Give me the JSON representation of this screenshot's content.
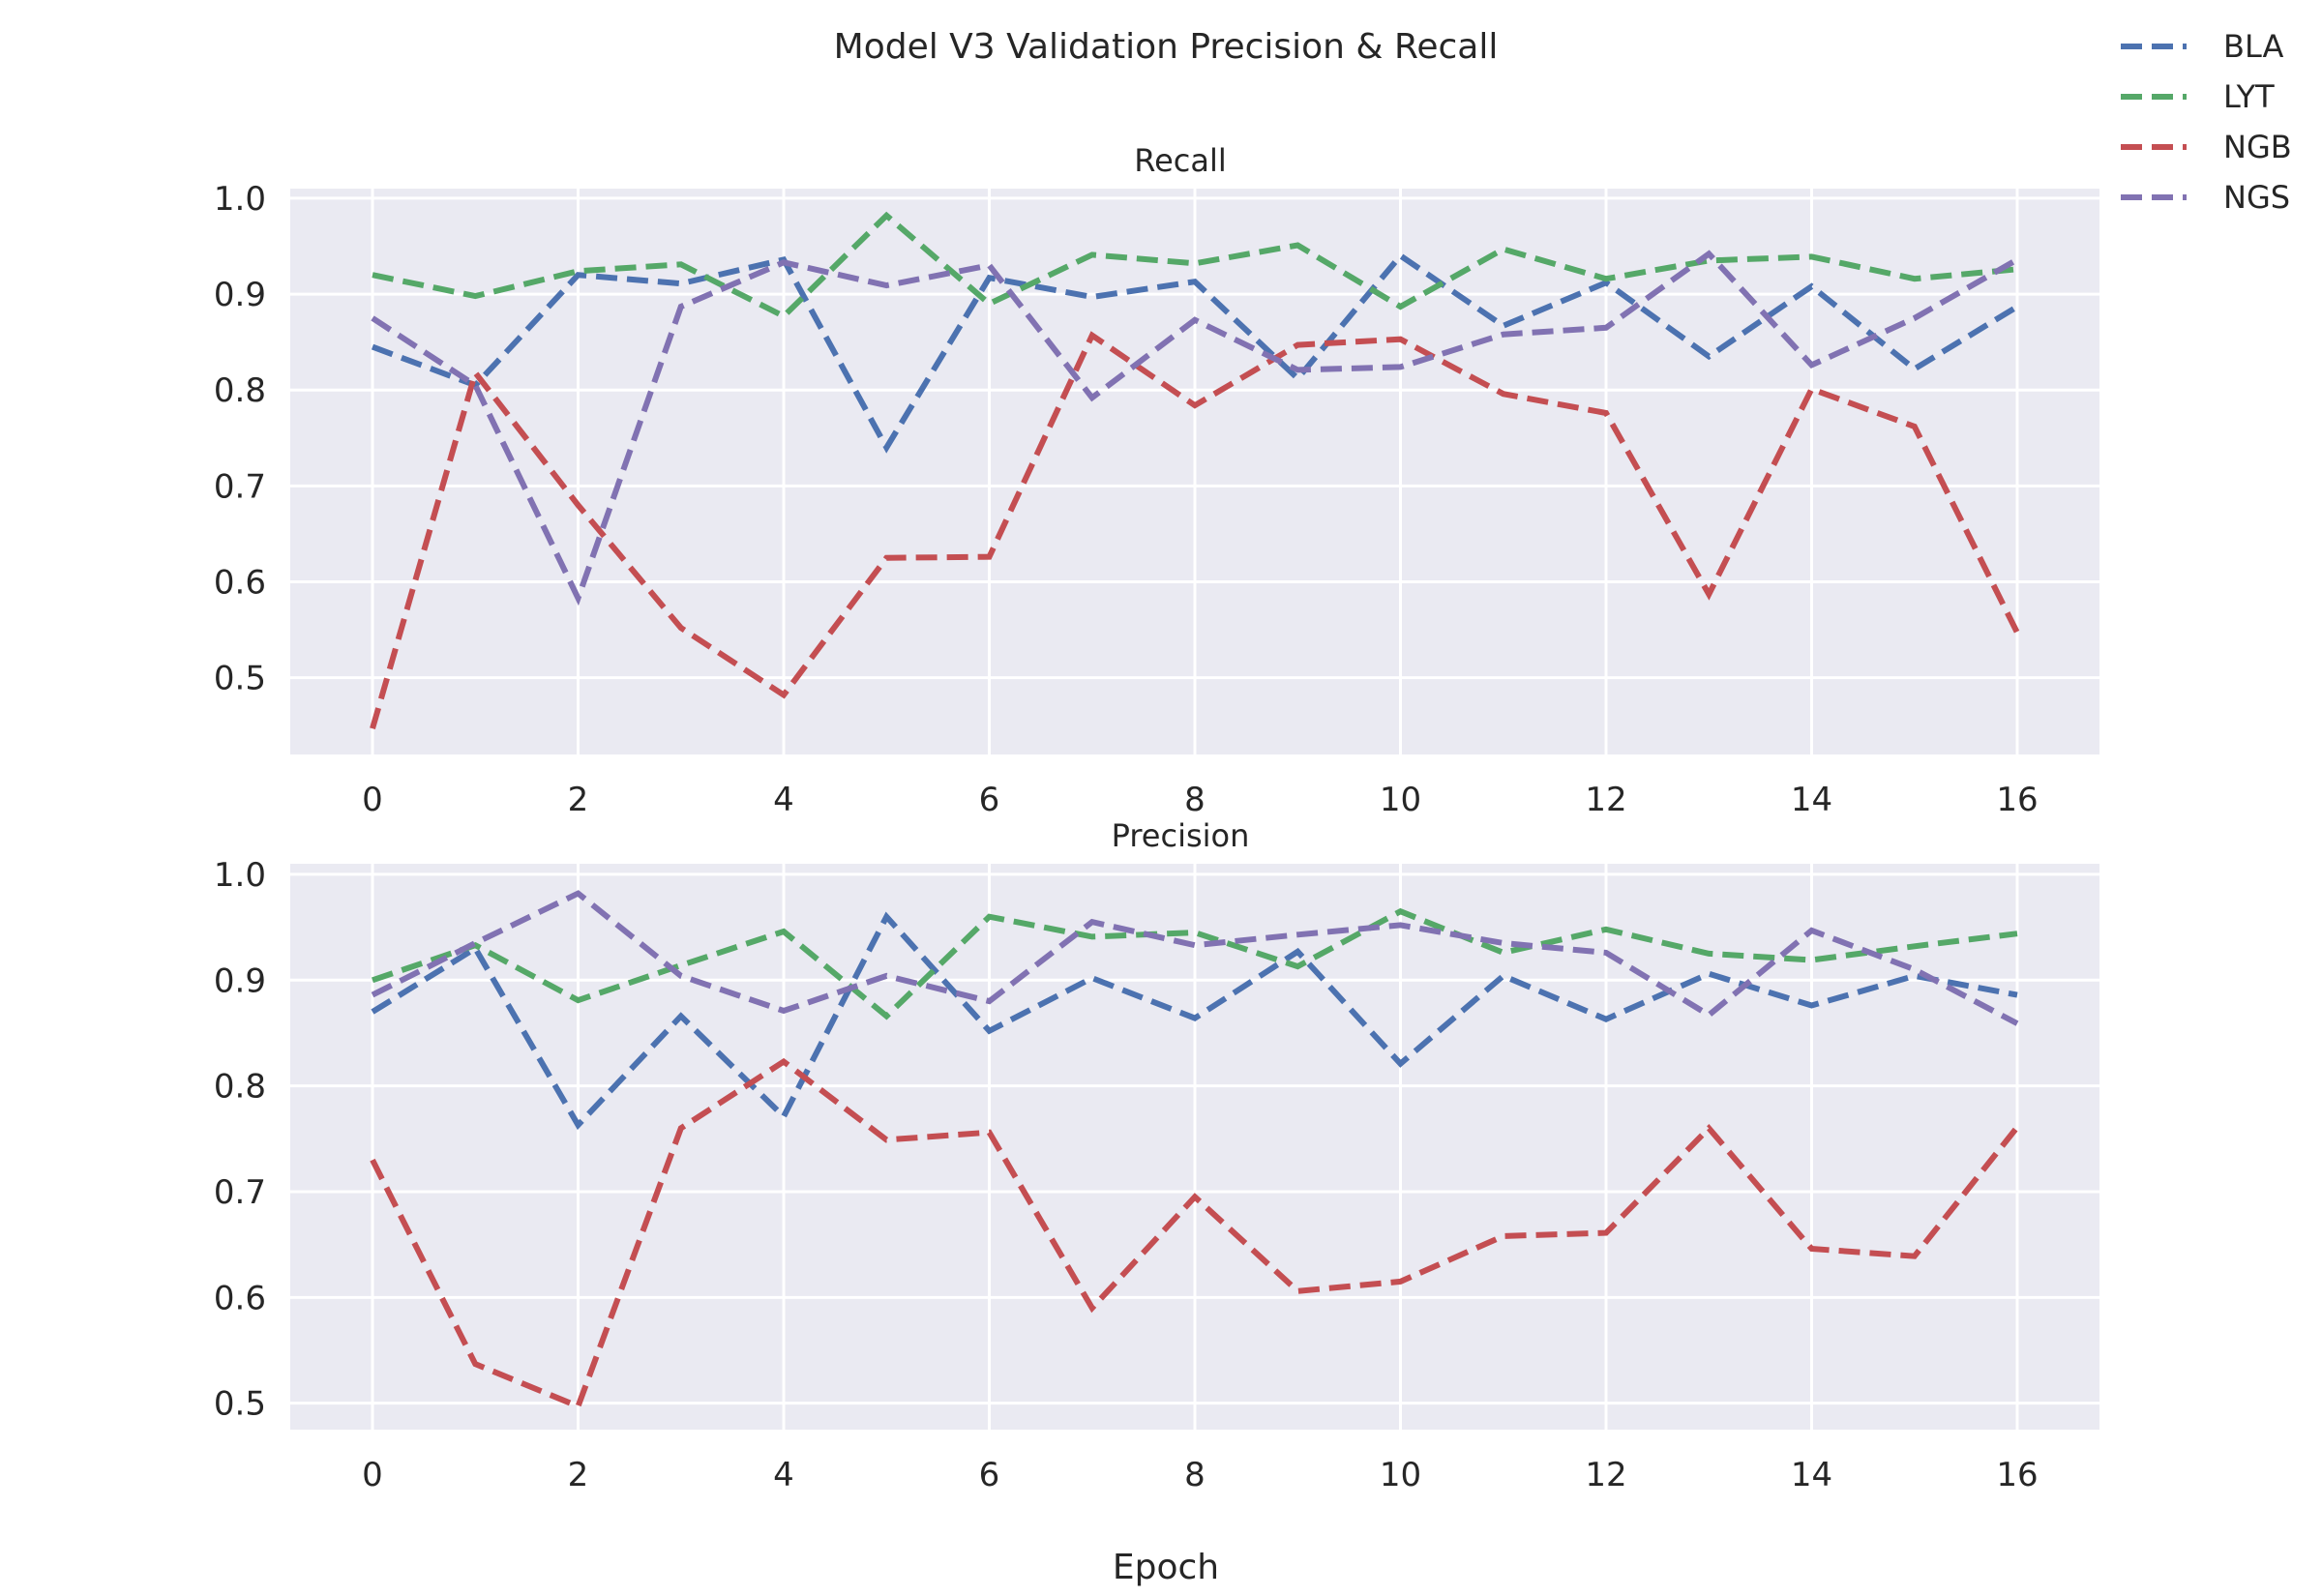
{
  "chart_data": {
    "type": "line",
    "title": "Model V3 Validation Precision & Recall",
    "xlabel": "Epoch",
    "legend": {
      "placement": "top-right",
      "entries": [
        "BLA",
        "LYT",
        "NGB",
        "NGS"
      ]
    },
    "line_style": "dashed",
    "grid": true,
    "background": "#eaeaf2",
    "colors": {
      "BLA": "#4c72b0",
      "LYT": "#55a868",
      "NGB": "#c44e52",
      "NGS": "#8172b2"
    },
    "x": [
      0,
      1,
      2,
      3,
      4,
      5,
      6,
      7,
      8,
      9,
      10,
      11,
      12,
      13,
      14,
      15,
      16
    ],
    "xticks": [
      0,
      2,
      4,
      6,
      8,
      10,
      12,
      14,
      16
    ],
    "xlim": [
      -0.8,
      16.8
    ],
    "subplots": [
      {
        "title": "Recall",
        "ylim": [
          0.42,
          1.01
        ],
        "yticks": [
          0.5,
          0.6,
          0.7,
          0.8,
          0.9,
          1.0
        ],
        "ytick_labels": [
          "0.5",
          "0.6",
          "0.7",
          "0.8",
          "0.9",
          "1.0"
        ],
        "series": [
          {
            "name": "BLA",
            "values": [
              0.845,
              0.805,
              0.92,
              0.911,
              0.936,
              0.74,
              0.917,
              0.897,
              0.913,
              0.812,
              0.94,
              0.867,
              0.912,
              0.835,
              0.908,
              0.822,
              0.887
            ]
          },
          {
            "name": "LYT",
            "values": [
              0.92,
              0.898,
              0.924,
              0.931,
              0.877,
              0.982,
              0.89,
              0.941,
              0.932,
              0.951,
              0.887,
              0.947,
              0.916,
              0.935,
              0.939,
              0.916,
              0.926
            ]
          },
          {
            "name": "NGB",
            "values": [
              0.447,
              0.818,
              0.68,
              0.552,
              0.482,
              0.625,
              0.626,
              0.857,
              0.784,
              0.847,
              0.853,
              0.796,
              0.776,
              0.587,
              0.801,
              0.762,
              0.547
            ]
          },
          {
            "name": "NGS",
            "values": [
              0.875,
              0.805,
              0.583,
              0.887,
              0.933,
              0.909,
              0.93,
              0.792,
              0.873,
              0.821,
              0.824,
              0.858,
              0.865,
              0.942,
              0.826,
              0.875,
              0.936
            ]
          }
        ]
      },
      {
        "title": "Precision",
        "ylim": [
          0.475,
          1.01
        ],
        "yticks": [
          0.5,
          0.6,
          0.7,
          0.8,
          0.9,
          1.0
        ],
        "ytick_labels": [
          "0.5",
          "0.6",
          "0.7",
          "0.8",
          "0.9",
          "1.0"
        ],
        "series": [
          {
            "name": "BLA",
            "values": [
              0.87,
              0.93,
              0.763,
              0.866,
              0.771,
              0.96,
              0.852,
              0.902,
              0.864,
              0.927,
              0.821,
              0.904,
              0.863,
              0.906,
              0.876,
              0.904,
              0.886
            ]
          },
          {
            "name": "LYT",
            "values": [
              0.9,
              0.933,
              0.881,
              0.914,
              0.946,
              0.866,
              0.96,
              0.941,
              0.945,
              0.913,
              0.965,
              0.926,
              0.948,
              0.925,
              0.919,
              0.932,
              0.944
            ]
          },
          {
            "name": "NGB",
            "values": [
              0.73,
              0.537,
              0.497,
              0.76,
              0.823,
              0.749,
              0.756,
              0.59,
              0.695,
              0.606,
              0.615,
              0.658,
              0.661,
              0.76,
              0.646,
              0.639,
              0.761
            ]
          },
          {
            "name": "NGS",
            "values": [
              0.886,
              0.935,
              0.982,
              0.904,
              0.871,
              0.904,
              0.88,
              0.955,
              0.933,
              0.943,
              0.952,
              0.935,
              0.926,
              0.867,
              0.947,
              0.91,
              0.859
            ]
          }
        ]
      }
    ]
  }
}
